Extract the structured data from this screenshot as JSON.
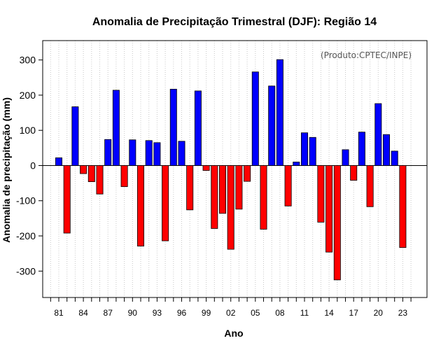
{
  "chart_data": {
    "type": "bar",
    "title": "Anomalia de Precipitação Trimestral (DJF): Região 14",
    "xlabel": "Ano",
    "ylabel": "Anomalia de precipitação (mm)",
    "credit": "(Produto:CPTEC/INPE)",
    "ylim": [
      -375,
      355
    ],
    "yticks": [
      -300,
      -200,
      -100,
      0,
      100,
      200,
      300
    ],
    "grid": "vertical-dotted",
    "positive_color": "#0000ff",
    "negative_color": "#ff0000",
    "years": [
      1981,
      1982,
      1983,
      1984,
      1985,
      1986,
      1987,
      1988,
      1989,
      1990,
      1991,
      1992,
      1993,
      1994,
      1995,
      1996,
      1997,
      1998,
      1999,
      2000,
      2001,
      2002,
      2003,
      2004,
      2005,
      2006,
      2007,
      2008,
      2009,
      2010,
      2011,
      2012,
      2013,
      2014,
      2015,
      2016,
      2017,
      2018,
      2019,
      2020,
      2021,
      2022,
      2023
    ],
    "values": [
      22,
      -192,
      167,
      -23,
      -46,
      -81,
      74,
      214,
      -60,
      73,
      -229,
      71,
      65,
      -214,
      217,
      69,
      -126,
      212,
      -14,
      -179,
      -136,
      -238,
      -124,
      -45,
      266,
      -181,
      226,
      301,
      -115,
      10,
      93,
      80,
      -161,
      -246,
      -325,
      45,
      -42,
      95,
      -117,
      176,
      88,
      41,
      -233
    ],
    "x_tick_labels": [
      "81",
      "84",
      "87",
      "90",
      "93",
      "96",
      "99",
      "02",
      "05",
      "08",
      "11",
      "14",
      "17",
      "20",
      "23"
    ]
  }
}
